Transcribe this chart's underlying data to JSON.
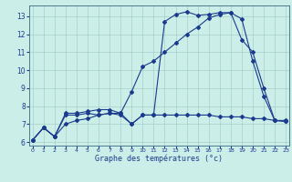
{
  "title": "Graphe des températures (°c)",
  "bg_color": "#cceee8",
  "line_color": "#1a3a8c",
  "xlim": [
    -0.3,
    23.3
  ],
  "ylim": [
    5.8,
    13.6
  ],
  "xticks": [
    0,
    1,
    2,
    3,
    4,
    5,
    6,
    7,
    8,
    9,
    10,
    11,
    12,
    13,
    14,
    15,
    16,
    17,
    18,
    19,
    20,
    21,
    22,
    23
  ],
  "yticks": [
    6,
    7,
    8,
    9,
    10,
    11,
    12,
    13
  ],
  "s1_x": [
    0,
    1,
    2,
    3,
    4,
    5,
    6,
    7,
    8,
    9,
    10,
    11,
    12,
    13,
    14,
    15,
    16,
    17,
    18,
    19,
    20,
    21,
    22,
    23
  ],
  "s1_y": [
    6.1,
    6.8,
    6.3,
    7.6,
    7.6,
    7.7,
    7.8,
    7.8,
    7.6,
    7.0,
    7.5,
    7.5,
    12.7,
    13.1,
    13.25,
    13.05,
    13.1,
    13.2,
    13.2,
    12.85,
    10.5,
    8.55,
    7.2,
    7.2
  ],
  "s2_x": [
    0,
    1,
    2,
    3,
    4,
    5,
    6,
    7,
    8,
    9,
    10,
    11,
    12,
    13,
    14,
    15,
    16,
    17,
    18,
    19,
    20,
    21,
    22,
    23
  ],
  "s2_y": [
    6.1,
    6.8,
    6.3,
    7.5,
    7.5,
    7.6,
    7.5,
    7.6,
    7.6,
    8.8,
    10.2,
    10.5,
    11.0,
    11.5,
    12.0,
    12.4,
    12.9,
    13.1,
    13.2,
    11.7,
    11.0,
    9.0,
    7.2,
    7.15
  ],
  "s3_x": [
    0,
    1,
    2,
    3,
    4,
    5,
    6,
    7,
    8,
    9,
    10,
    11,
    12,
    13,
    14,
    15,
    16,
    17,
    18,
    19,
    20,
    21,
    22,
    23
  ],
  "s3_y": [
    6.1,
    6.8,
    6.3,
    7.0,
    7.2,
    7.3,
    7.5,
    7.6,
    7.5,
    7.0,
    7.5,
    7.5,
    7.5,
    7.5,
    7.5,
    7.5,
    7.5,
    7.4,
    7.4,
    7.4,
    7.3,
    7.3,
    7.2,
    7.15
  ]
}
